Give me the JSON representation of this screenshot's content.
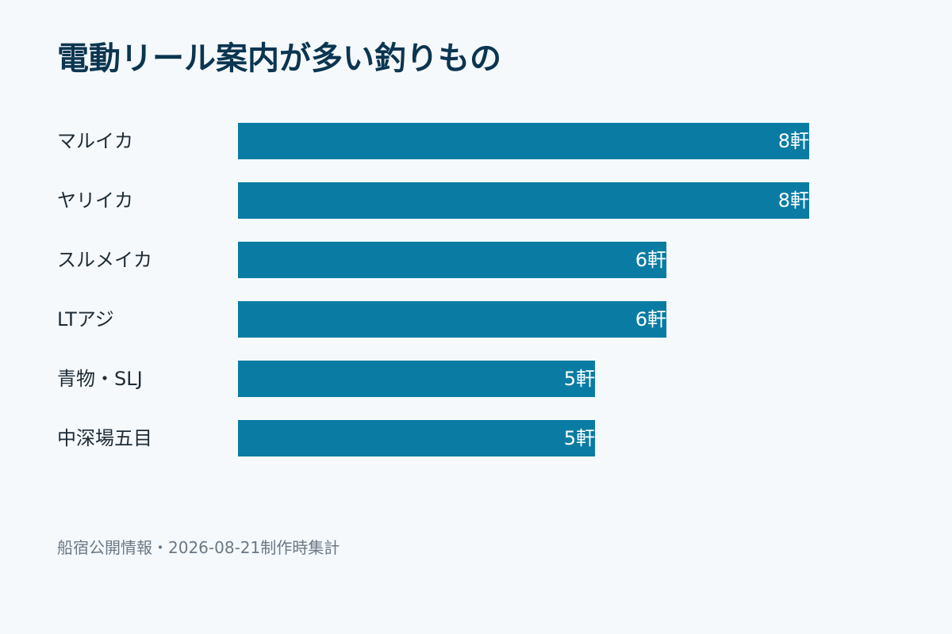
{
  "chart_data": {
    "type": "bar",
    "orientation": "horizontal",
    "title": "電動リール案内が多い釣りもの",
    "categories": [
      "マルイカ",
      "ヤリイカ",
      "スルメイカ",
      "LTアジ",
      "青物・SLJ",
      "中深場五目"
    ],
    "values": [
      8,
      8,
      6,
      6,
      5,
      5
    ],
    "value_unit": "軒",
    "value_labels": [
      "8軒",
      "8軒",
      "6軒",
      "6軒",
      "5軒",
      "5軒"
    ],
    "xlim": [
      0,
      10
    ],
    "grid": false,
    "legend": "none",
    "bar_color": "#0a7ca3"
  },
  "footer": {
    "note": "船宿公開情報・2026-08-21制作時集計"
  },
  "colors": {
    "background": "#f5f9fc",
    "title": "#0b3550",
    "bar": "#0a7ca3",
    "footer_text": "#6b7883"
  }
}
